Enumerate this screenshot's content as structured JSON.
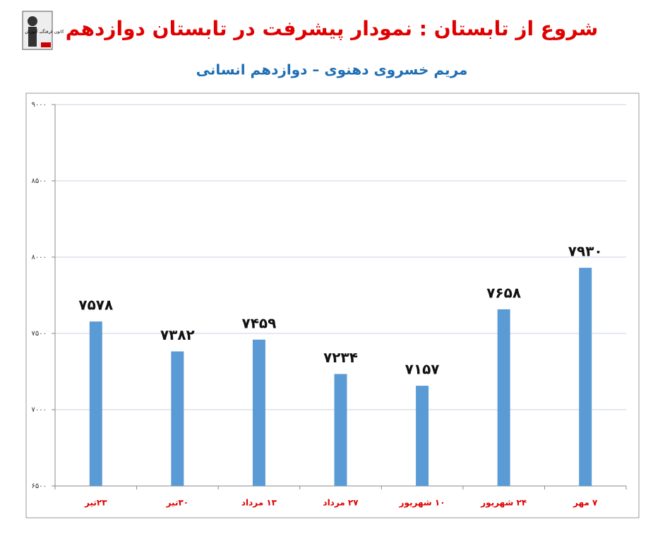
{
  "chart_data": {
    "type": "bar",
    "title": "شروع از تابستان : نمودار پیشرفت در تابستان دوازدهم",
    "subtitle": "مریم خسروی دهنوی – دوازدهم انسانی",
    "logo_text": "کانون فرهنگی آموزش",
    "categories": [
      "۲۳تیر",
      "۳۰تیر",
      "۱۳ مرداد",
      "۲۷ مرداد",
      "۱۰ شهریور",
      "۲۴ شهریور",
      "۷ مهر"
    ],
    "values": [
      7578,
      7382,
      7459,
      7234,
      7157,
      7658,
      7930
    ],
    "value_labels": [
      "۷۵۷۸",
      "۷۳۸۲",
      "۷۴۵۹",
      "۷۲۳۴",
      "۷۱۵۷",
      "۷۶۵۸",
      "۷۹۳۰"
    ],
    "color": "#5b9bd5",
    "ylim": [
      6500,
      9000
    ],
    "yticks": [
      {
        "value": 6500,
        "label": "۶۵۰۰"
      },
      {
        "value": 7000,
        "label": "۷۰۰۰"
      },
      {
        "value": 7500,
        "label": "۷۵۰۰"
      },
      {
        "value": 8000,
        "label": "۸۰۰۰"
      },
      {
        "value": 8500,
        "label": "۸۵۰۰"
      },
      {
        "value": 9000,
        "label": "۹۰۰۰"
      }
    ],
    "grid": true
  }
}
